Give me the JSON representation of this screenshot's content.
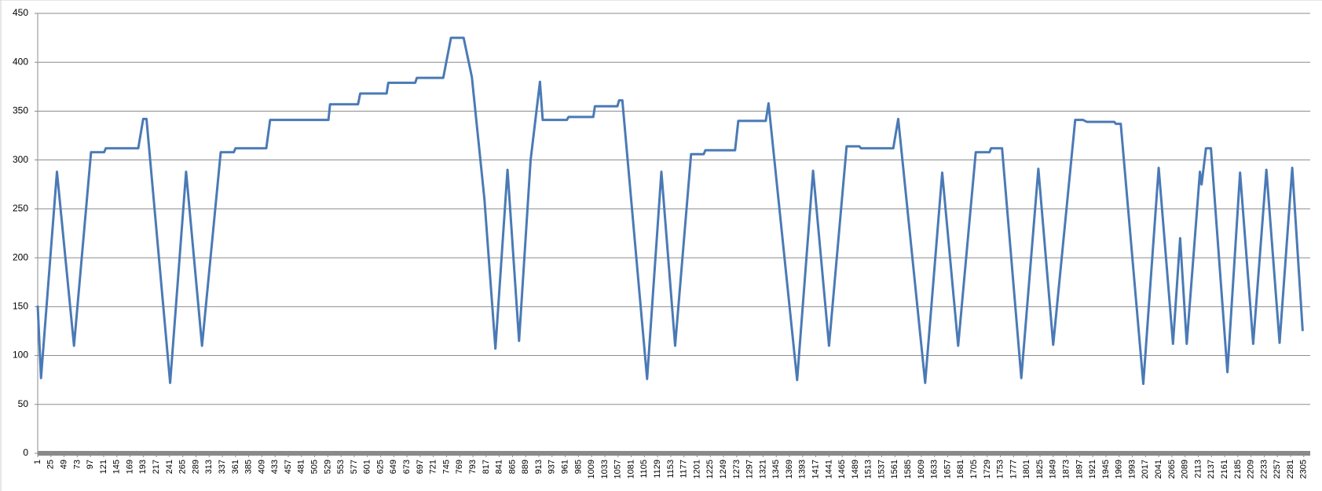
{
  "chart_data": {
    "type": "line",
    "x": [
      1,
      7,
      36,
      67,
      98,
      122,
      125,
      184,
      193,
      199,
      242,
      271,
      300,
      334,
      358,
      361,
      417,
      424,
      472,
      530,
      533,
      584,
      588,
      636,
      639,
      688,
      691,
      739,
      753,
      776,
      791,
      814,
      834,
      856,
      877,
      898,
      915,
      920,
      964,
      967,
      1012,
      1015,
      1056,
      1059,
      1065,
      1110,
      1136,
      1161,
      1190,
      1213,
      1216,
      1270,
      1276,
      1326,
      1331,
      1383,
      1412,
      1441,
      1473,
      1496,
      1499,
      1558,
      1567,
      1616,
      1647,
      1676,
      1708,
      1733,
      1736,
      1756,
      1791,
      1822,
      1849,
      1889,
      1903,
      1910,
      1960,
      1963,
      1972,
      2013,
      2041,
      2067,
      2080,
      2092,
      2116,
      2119,
      2127,
      2136,
      2166,
      2189,
      2213,
      2237,
      2261,
      2284,
      2303
    ],
    "series": [
      {
        "color": "#4a7ab5",
        "values": [
          151,
          77,
          288,
          110,
          308,
          308,
          312,
          312,
          342,
          342,
          72,
          288,
          110,
          308,
          308,
          312,
          312,
          341,
          341,
          341,
          357,
          357,
          368,
          368,
          379,
          379,
          384,
          384,
          425,
          425,
          385,
          260,
          107,
          290,
          115,
          300,
          380,
          341,
          341,
          344,
          344,
          355,
          355,
          361,
          361,
          76,
          288,
          110,
          306,
          306,
          310,
          310,
          340,
          340,
          358,
          75,
          289,
          110,
          314,
          314,
          312,
          312,
          342,
          72,
          287,
          110,
          308,
          308,
          312,
          312,
          77,
          291,
          111,
          341,
          341,
          339,
          339,
          337,
          337,
          71,
          292,
          112,
          220,
          112,
          288,
          275,
          312,
          312,
          83,
          287,
          112,
          290,
          113,
          292,
          125
        ]
      }
    ],
    "xlim": [
      1,
      2311
    ],
    "xticks": [
      1,
      25,
      49,
      73,
      97,
      121,
      145,
      169,
      193,
      217,
      241,
      265,
      289,
      313,
      337,
      361,
      385,
      409,
      433,
      457,
      481,
      505,
      529,
      553,
      577,
      601,
      625,
      649,
      673,
      697,
      721,
      745,
      769,
      793,
      817,
      841,
      865,
      889,
      913,
      937,
      961,
      985,
      1009,
      1033,
      1057,
      1081,
      1105,
      1129,
      1153,
      1177,
      1201,
      1225,
      1249,
      1273,
      1297,
      1321,
      1345,
      1369,
      1393,
      1417,
      1441,
      1465,
      1489,
      1513,
      1537,
      1561,
      1585,
      1609,
      1633,
      1657,
      1681,
      1705,
      1729,
      1753,
      1777,
      1801,
      1825,
      1849,
      1873,
      1897,
      1921,
      1945,
      1969,
      1993,
      2017,
      2041,
      2065,
      2089,
      2113,
      2137,
      2161,
      2185,
      2209,
      2233,
      2257,
      2281,
      2305
    ],
    "ylim": [
      0,
      450
    ],
    "yticks": [
      0,
      50,
      100,
      150,
      200,
      250,
      300,
      350,
      400,
      450
    ],
    "grid": true
  }
}
